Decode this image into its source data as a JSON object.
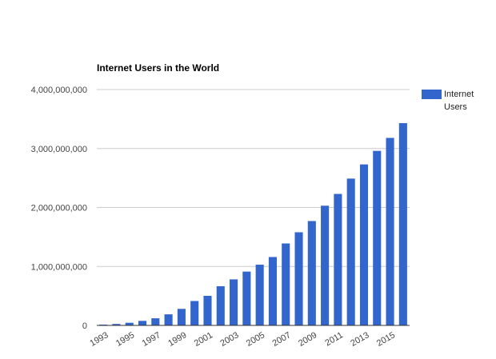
{
  "chart_data": {
    "type": "bar",
    "title": "Internet Users in the World",
    "xlabel": "",
    "ylabel": "",
    "categories": [
      "1993",
      "1994",
      "1995",
      "1996",
      "1997",
      "1998",
      "1999",
      "2000",
      "2001",
      "2002",
      "2003",
      "2004",
      "2005",
      "2006",
      "2007",
      "2008",
      "2009",
      "2010",
      "2011",
      "2012",
      "2013",
      "2014",
      "2015",
      "2016"
    ],
    "x_tick_labels": [
      "1993",
      "1995",
      "1997",
      "1999",
      "2001",
      "2003",
      "2005",
      "2007",
      "2009",
      "2011",
      "2013",
      "2015"
    ],
    "series": [
      {
        "name": "Internet Users",
        "color": "#3366cc",
        "values": [
          14000000,
          25000000,
          45000000,
          77000000,
          121000000,
          188000000,
          281000000,
          414000000,
          502000000,
          665000000,
          781000000,
          913000000,
          1030000000,
          1160000000,
          1390000000,
          1580000000,
          1770000000,
          2030000000,
          2230000000,
          2490000000,
          2730000000,
          2960000000,
          3180000000,
          3430000000
        ]
      }
    ],
    "ylim": [
      0,
      4000000000
    ],
    "y_ticks": [
      0,
      1000000000,
      2000000000,
      3000000000,
      4000000000
    ],
    "y_tick_labels": [
      "0",
      "1,000,000,000",
      "2,000,000,000",
      "3,000,000,000",
      "4,000,000,000"
    ],
    "grid": true,
    "legend": {
      "placement": "right",
      "lines": [
        "Internet",
        "Users"
      ]
    }
  }
}
